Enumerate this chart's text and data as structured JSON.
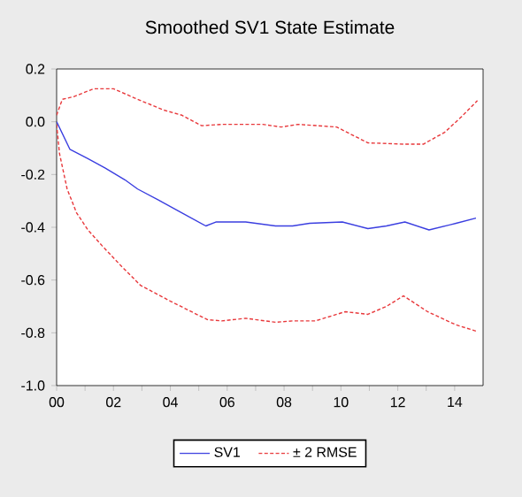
{
  "chart_data": {
    "type": "line",
    "title": "Smoothed SV1 State Estimate",
    "xlim": [
      0,
      15
    ],
    "ylim": [
      -1.0,
      0.2
    ],
    "xticks": [
      {
        "value": 0,
        "label": "00"
      },
      {
        "value": 1,
        "label": null
      },
      {
        "value": 2,
        "label": "02"
      },
      {
        "value": 3,
        "label": null
      },
      {
        "value": 4,
        "label": "04"
      },
      {
        "value": 5,
        "label": null
      },
      {
        "value": 6,
        "label": "06"
      },
      {
        "value": 7,
        "label": null
      },
      {
        "value": 8,
        "label": "08"
      },
      {
        "value": 9,
        "label": null
      },
      {
        "value": 10,
        "label": "10"
      },
      {
        "value": 11,
        "label": null
      },
      {
        "value": 12,
        "label": "12"
      },
      {
        "value": 13,
        "label": null
      },
      {
        "value": 14,
        "label": "14"
      }
    ],
    "yticks": [
      {
        "value": -1.0,
        "label": "-1.0"
      },
      {
        "value": -0.8,
        "label": "-0.8"
      },
      {
        "value": -0.6,
        "label": "-0.6"
      },
      {
        "value": -0.4,
        "label": "-0.4"
      },
      {
        "value": -0.2,
        "label": "-0.2"
      },
      {
        "value": 0,
        "label": "0.0"
      },
      {
        "value": 0.2,
        "label": "0.2"
      }
    ],
    "grid": false,
    "legend": "bottom",
    "series": [
      {
        "name": "SV1",
        "color": "#3a3ee0",
        "line_style": "solid",
        "x": [
          0,
          0.47,
          1.1,
          1.7,
          2.4,
          2.85,
          3.55,
          4.4,
          5.25,
          5.6,
          6.65,
          7.7,
          8.3,
          8.9,
          10.05,
          10.95,
          11.6,
          12.25,
          13.1,
          14.05,
          14.75
        ],
        "values": [
          0.0,
          -0.105,
          -0.14,
          -0.175,
          -0.22,
          -0.255,
          -0.295,
          -0.345,
          -0.395,
          -0.38,
          -0.38,
          -0.395,
          -0.395,
          -0.385,
          -0.38,
          -0.405,
          -0.395,
          -0.38,
          -0.41,
          -0.385,
          -0.365
        ]
      },
      {
        "name": "± 2 RMSE",
        "color": "#e8383b",
        "line_style": "dashed",
        "x": [
          0,
          0.2,
          0.6,
          1.3,
          2.0,
          2.85,
          3.75,
          4.4,
          5.1,
          5.8,
          7.25,
          7.9,
          8.5,
          9.85,
          10.95,
          12.2,
          12.9,
          13.65,
          14.25,
          14.8
        ],
        "values": [
          0.025,
          0.085,
          0.095,
          0.125,
          0.125,
          0.085,
          0.045,
          0.025,
          -0.015,
          -0.01,
          -0.01,
          -0.02,
          -0.01,
          -0.02,
          -0.08,
          -0.085,
          -0.085,
          -0.04,
          0.02,
          0.08
        ]
      },
      {
        "color": "#e8383b",
        "line_style": "dashed",
        "x": [
          0,
          0.1,
          0.37,
          0.7,
          1.1,
          1.6,
          2.3,
          2.95,
          4.0,
          5.3,
          5.8,
          6.65,
          7.7,
          8.3,
          9.1,
          10.15,
          10.95,
          11.6,
          12.2,
          13.05,
          14.05,
          14.8
        ],
        "values": [
          -0.01,
          -0.12,
          -0.255,
          -0.345,
          -0.41,
          -0.47,
          -0.55,
          -0.62,
          -0.68,
          -0.75,
          -0.755,
          -0.745,
          -0.76,
          -0.755,
          -0.755,
          -0.72,
          -0.73,
          -0.7,
          -0.66,
          -0.72,
          -0.77,
          -0.795
        ]
      }
    ]
  }
}
